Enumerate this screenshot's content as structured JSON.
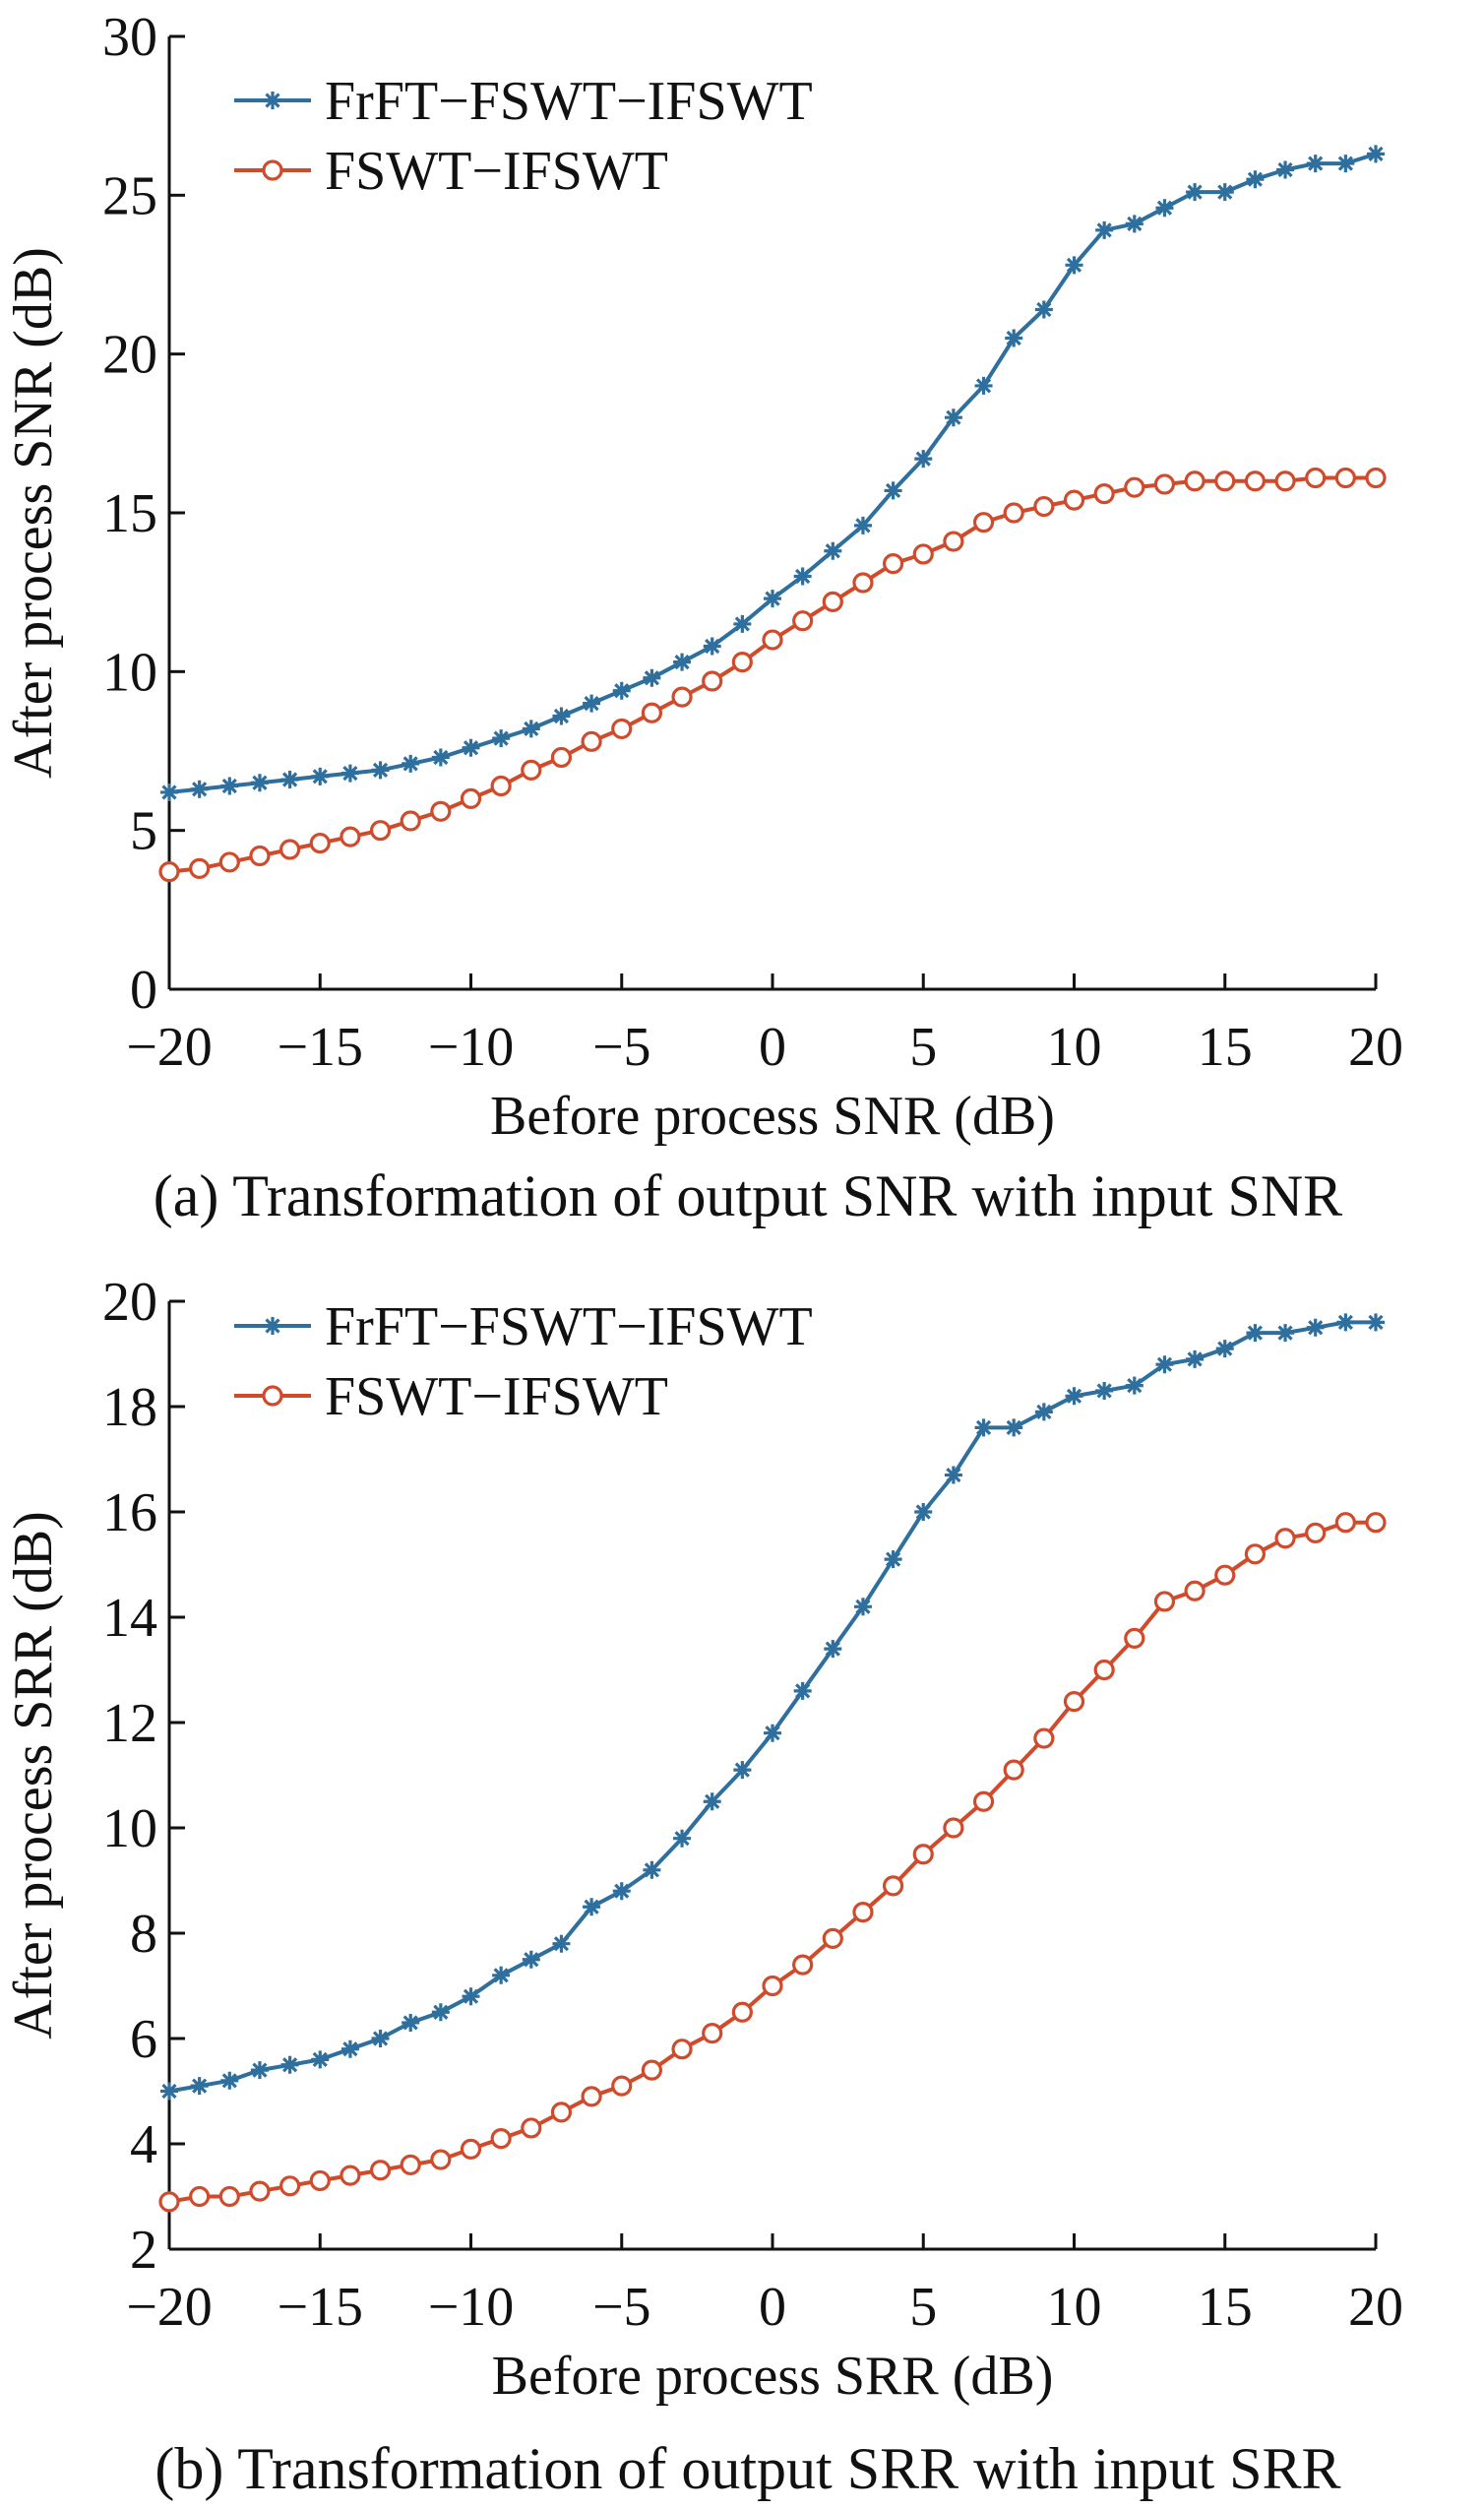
{
  "colors": {
    "series_blue": "#2e6f9e",
    "series_red": "#cf4b2c",
    "axis": "#111111"
  },
  "chart_data": [
    {
      "id": "a",
      "type": "line",
      "title": "",
      "caption": "(a) Transformation of output SNR with input SNR",
      "xlabel": "Before process SNR (dB)",
      "ylabel": "After process SNR (dB)",
      "xlim": [
        -20,
        20
      ],
      "ylim": [
        0,
        30
      ],
      "xticks": [
        -20,
        -15,
        -10,
        -5,
        0,
        5,
        10,
        15,
        20
      ],
      "xtick_labels": [
        "−20",
        "−15",
        "−10",
        "−5",
        "0",
        "5",
        "10",
        "15",
        "20"
      ],
      "yticks": [
        0,
        5,
        10,
        15,
        20,
        25,
        30
      ],
      "ytick_labels": [
        "0",
        "5",
        "10",
        "15",
        "20",
        "25",
        "30"
      ],
      "legend_position": "top-left",
      "grid": false,
      "x": [
        -20,
        -19,
        -18,
        -17,
        -16,
        -15,
        -14,
        -13,
        -12,
        -11,
        -10,
        -9,
        -8,
        -7,
        -6,
        -5,
        -4,
        -3,
        -2,
        -1,
        0,
        1,
        2,
        3,
        4,
        5,
        6,
        7,
        8,
        9,
        10,
        11,
        12,
        13,
        14,
        15,
        16,
        17,
        18,
        19,
        20
      ],
      "series": [
        {
          "name": "FrFT−FSWT−IFSWT",
          "marker": "star",
          "color": "#2e6f9e",
          "values": [
            6.2,
            6.3,
            6.4,
            6.5,
            6.6,
            6.7,
            6.8,
            6.9,
            7.1,
            7.3,
            7.6,
            7.9,
            8.2,
            8.6,
            9.0,
            9.4,
            9.8,
            10.3,
            10.8,
            11.5,
            12.3,
            13.0,
            13.8,
            14.6,
            15.7,
            16.7,
            18.0,
            19.0,
            20.5,
            21.4,
            22.8,
            23.9,
            24.1,
            24.6,
            25.1,
            25.1,
            25.5,
            25.8,
            26.0,
            26.0,
            26.3
          ]
        },
        {
          "name": "FSWT−IFSWT",
          "marker": "circle",
          "color": "#cf4b2c",
          "values": [
            3.7,
            3.8,
            4.0,
            4.2,
            4.4,
            4.6,
            4.8,
            5.0,
            5.3,
            5.6,
            6.0,
            6.4,
            6.9,
            7.3,
            7.8,
            8.2,
            8.7,
            9.2,
            9.7,
            10.3,
            11.0,
            11.6,
            12.2,
            12.8,
            13.4,
            13.7,
            14.1,
            14.7,
            15.0,
            15.2,
            15.4,
            15.6,
            15.8,
            15.9,
            16.0,
            16.0,
            16.0,
            16.0,
            16.1,
            16.1,
            16.1
          ]
        }
      ]
    },
    {
      "id": "b",
      "type": "line",
      "title": "",
      "caption": "(b) Transformation of output SRR with input SRR",
      "xlabel": "Before process SRR (dB)",
      "ylabel": "After process SRR (dB)",
      "xlim": [
        -20,
        20
      ],
      "ylim": [
        2,
        20
      ],
      "xticks": [
        -20,
        -15,
        -10,
        -5,
        0,
        5,
        10,
        15,
        20
      ],
      "xtick_labels": [
        "−20",
        "−15",
        "−10",
        "−5",
        "0",
        "5",
        "10",
        "15",
        "20"
      ],
      "yticks": [
        2,
        4,
        6,
        8,
        10,
        12,
        14,
        16,
        18,
        20
      ],
      "ytick_labels": [
        "2",
        "4",
        "6",
        "8",
        "10",
        "12",
        "14",
        "16",
        "18",
        "20"
      ],
      "legend_position": "top-left",
      "grid": false,
      "x": [
        -20,
        -19,
        -18,
        -17,
        -16,
        -15,
        -14,
        -13,
        -12,
        -11,
        -10,
        -9,
        -8,
        -7,
        -6,
        -5,
        -4,
        -3,
        -2,
        -1,
        0,
        1,
        2,
        3,
        4,
        5,
        6,
        7,
        8,
        9,
        10,
        11,
        12,
        13,
        14,
        15,
        16,
        17,
        18,
        19,
        20
      ],
      "series": [
        {
          "name": "FrFT−FSWT−IFSWT",
          "marker": "star",
          "color": "#2e6f9e",
          "values": [
            5.0,
            5.1,
            5.2,
            5.4,
            5.5,
            5.6,
            5.8,
            6.0,
            6.3,
            6.5,
            6.8,
            7.2,
            7.5,
            7.8,
            8.5,
            8.8,
            9.2,
            9.8,
            10.5,
            11.1,
            11.8,
            12.6,
            13.4,
            14.2,
            15.1,
            16.0,
            16.7,
            17.6,
            17.6,
            17.9,
            18.2,
            18.3,
            18.4,
            18.8,
            18.9,
            19.1,
            19.4,
            19.4,
            19.5,
            19.6,
            19.6
          ]
        },
        {
          "name": "FSWT−IFSWT",
          "marker": "circle",
          "color": "#cf4b2c",
          "values": [
            2.9,
            3.0,
            3.0,
            3.1,
            3.2,
            3.3,
            3.4,
            3.5,
            3.6,
            3.7,
            3.9,
            4.1,
            4.3,
            4.6,
            4.9,
            5.1,
            5.4,
            5.8,
            6.1,
            6.5,
            7.0,
            7.4,
            7.9,
            8.4,
            8.9,
            9.5,
            10.0,
            10.5,
            11.1,
            11.7,
            12.4,
            13.0,
            13.6,
            14.3,
            14.5,
            14.8,
            15.2,
            15.5,
            15.6,
            15.8,
            15.8
          ]
        }
      ]
    }
  ]
}
